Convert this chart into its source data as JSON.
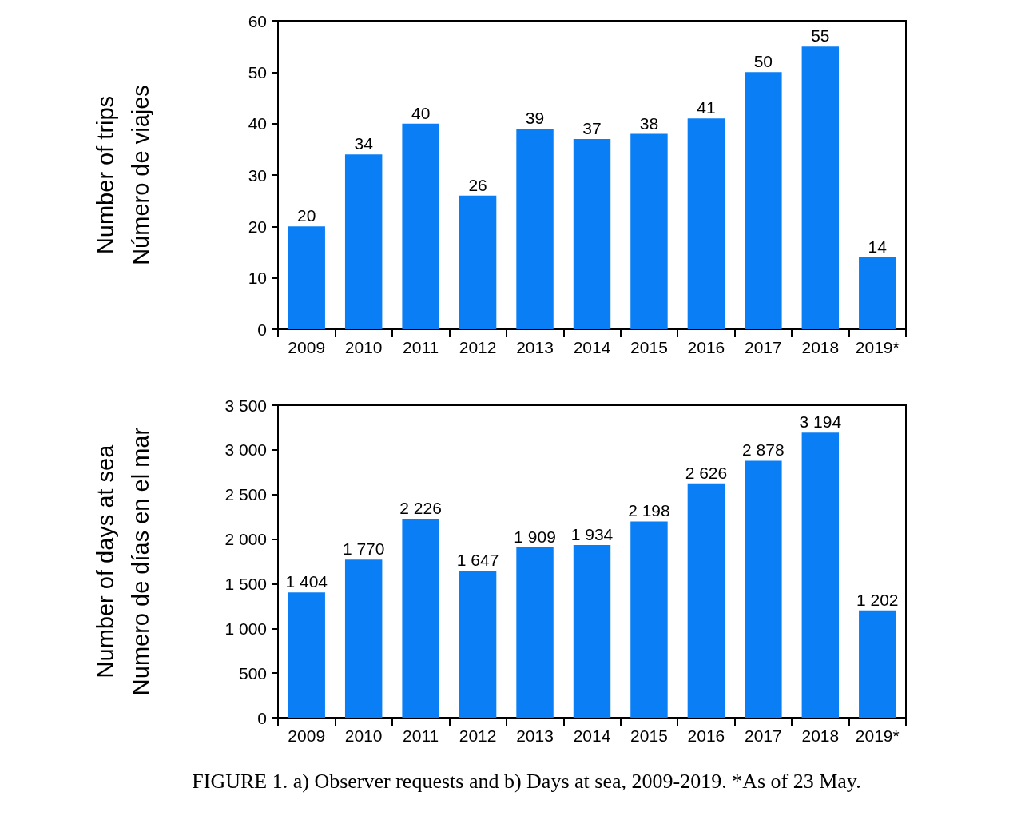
{
  "chart_data": [
    {
      "type": "bar",
      "ylabel": "Number of trips\nNúmero de viajes",
      "categories": [
        "2009",
        "2010",
        "2011",
        "2012",
        "2013",
        "2014",
        "2015",
        "2016",
        "2017",
        "2018",
        "2019*"
      ],
      "values": [
        20,
        34,
        40,
        26,
        39,
        37,
        38,
        41,
        50,
        55,
        14
      ],
      "color": "#0a7ff5",
      "ylim": [
        0,
        60
      ],
      "yticks": [
        0,
        10,
        20,
        30,
        40,
        50,
        60
      ],
      "data_labels": true,
      "grid": false
    },
    {
      "type": "bar",
      "ylabel": "Number of days at sea\nNumero de días en el mar",
      "categories": [
        "2009",
        "2010",
        "2011",
        "2012",
        "2013",
        "2014",
        "2015",
        "2016",
        "2017",
        "2018",
        "2019*"
      ],
      "values": [
        1404,
        1770,
        2226,
        1647,
        1909,
        1934,
        2198,
        2626,
        2878,
        3194,
        1202
      ],
      "value_labels": [
        "1 404",
        "1 770",
        "2 226",
        "1 647",
        "1 909",
        "1 934",
        "2 198",
        "2 626",
        "2 878",
        "3 194",
        "1 202"
      ],
      "color": "#0a7ff5",
      "ylim": [
        0,
        3500
      ],
      "yticks": [
        0,
        {
          "value": 500,
          "label": "500"
        },
        {
          "value": 1000,
          "label": "1 000"
        },
        {
          "value": 1500,
          "label": "1 500"
        },
        {
          "value": 2000,
          "label": "2 000"
        },
        {
          "value": 2500,
          "label": "2 500"
        },
        {
          "value": 3000,
          "label": "3 000"
        },
        {
          "value": 3500,
          "label": "3 500"
        }
      ],
      "grid": false,
      "annotations": [
        "FIGURE 1. a) Observer requests and b) Days at sea, 2009-2019. *As of 23 May."
      ]
    }
  ]
}
